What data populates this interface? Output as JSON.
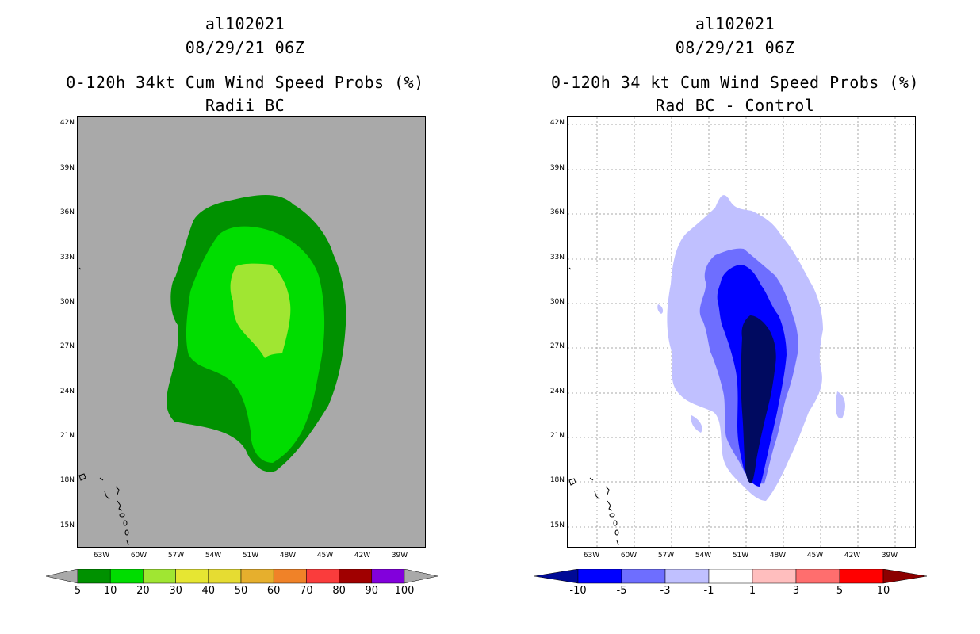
{
  "left": {
    "title_line1": "al102021",
    "title_line2": "08/29/21 06Z",
    "title_line3": "0-120h 34kt Cum Wind Speed Probs (%)",
    "title_line4": "Radii BC",
    "colorbar_labels": [
      "5",
      "10",
      "20",
      "30",
      "40",
      "50",
      "60",
      "70",
      "80",
      "90",
      "100"
    ],
    "colorbar_colors": [
      "#009100",
      "#00dd00",
      "#a0e632",
      "#e6e632",
      "#e6dc32",
      "#e6af2d",
      "#f08228",
      "#fa3c3c",
      "#a00000",
      "#8200dc"
    ],
    "background": "#a9a9a9"
  },
  "right": {
    "title_line1": "al102021",
    "title_line2": "08/29/21 06Z",
    "title_line3": "0-120h 34 kt Cum Wind Speed Probs (%)",
    "title_line4": "Rad BC - Control",
    "colorbar_labels": [
      "-10",
      "-5",
      "-3",
      "-1",
      "1",
      "3",
      "5",
      "10"
    ],
    "colorbar_colors": [
      "#000a96",
      "#0000ff",
      "#6e6eff",
      "#c0c0ff",
      "#ffffff",
      "#ffbebe",
      "#ff6e6e",
      "#ff0000",
      "#8c0000"
    ],
    "background": "#ffffff"
  },
  "axes": {
    "lat_labels": [
      "42N",
      "39N",
      "36N",
      "33N",
      "30N",
      "27N",
      "24N",
      "21N",
      "18N",
      "15N"
    ],
    "lon_labels": [
      "63W",
      "60W",
      "57W",
      "54W",
      "51W",
      "48W",
      "45W",
      "42W",
      "39W"
    ]
  }
}
